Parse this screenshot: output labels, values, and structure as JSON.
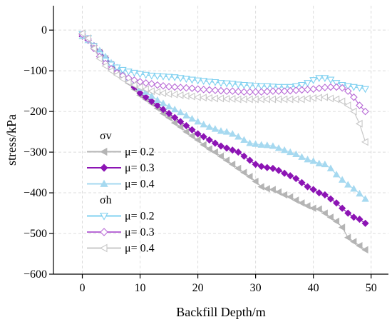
{
  "chart_data": {
    "type": "line",
    "xlabel": "Backfill Depth/m",
    "ylabel": "stress/kPa",
    "xlim": [
      -5,
      53
    ],
    "ylim": [
      -600,
      60
    ],
    "xticks": [
      0,
      10,
      20,
      30,
      40,
      50
    ],
    "yticks": [
      0,
      -100,
      -200,
      -300,
      -400,
      -500,
      -600
    ],
    "xtick_labels": [
      "0",
      "10",
      "20",
      "30",
      "40",
      "50"
    ],
    "ytick_labels": [
      "0",
      "−100",
      "−200",
      "−300",
      "−400",
      "−500",
      "−600"
    ],
    "grid": true,
    "legend_position": "bottom-left",
    "legend_groups": [
      {
        "title": "σv",
        "series": [
          "sv-0.2",
          "sv-0.3",
          "sv-0.4"
        ]
      },
      {
        "title": "σh",
        "series": [
          "sh-0.2",
          "sh-0.3",
          "sh-0.4"
        ]
      }
    ],
    "series": [
      {
        "id": "sv-0.2",
        "name": "μ= 0.2",
        "color": "#b4b4b4",
        "marker": "triangle-left",
        "filled": true,
        "points": [
          [
            0,
            -15
          ],
          [
            1,
            -25
          ],
          [
            2,
            -40
          ],
          [
            3,
            -55
          ],
          [
            4,
            -70
          ],
          [
            5,
            -85
          ],
          [
            6,
            -100
          ],
          [
            7,
            -115
          ],
          [
            8,
            -130
          ],
          [
            9,
            -145
          ],
          [
            10,
            -160
          ],
          [
            11,
            -170
          ],
          [
            12,
            -180
          ],
          [
            13,
            -192
          ],
          [
            14,
            -205
          ],
          [
            15,
            -215
          ],
          [
            16,
            -228
          ],
          [
            17,
            -238
          ],
          [
            18,
            -250
          ],
          [
            19,
            -260
          ],
          [
            20,
            -270
          ],
          [
            21,
            -282
          ],
          [
            22,
            -292
          ],
          [
            23,
            -300
          ],
          [
            24,
            -310
          ],
          [
            25,
            -320
          ],
          [
            26,
            -330
          ],
          [
            27,
            -340
          ],
          [
            28,
            -350
          ],
          [
            29,
            -360
          ],
          [
            30,
            -372
          ],
          [
            31,
            -385
          ],
          [
            32,
            -390
          ],
          [
            33,
            -392
          ],
          [
            34,
            -398
          ],
          [
            35,
            -405
          ],
          [
            36,
            -410
          ],
          [
            37,
            -418
          ],
          [
            38,
            -425
          ],
          [
            39,
            -432
          ],
          [
            40,
            -438
          ],
          [
            41,
            -440
          ],
          [
            42,
            -450
          ],
          [
            43,
            -460
          ],
          [
            44,
            -470
          ],
          [
            45,
            -485
          ],
          [
            46,
            -510
          ],
          [
            47,
            -520
          ],
          [
            48,
            -530
          ],
          [
            49,
            -540
          ]
        ]
      },
      {
        "id": "sv-0.3",
        "name": "μ= 0.3",
        "color": "#8c14b4",
        "marker": "diamond",
        "filled": true,
        "points": [
          [
            0,
            -15
          ],
          [
            1,
            -25
          ],
          [
            2,
            -38
          ],
          [
            3,
            -52
          ],
          [
            4,
            -68
          ],
          [
            5,
            -82
          ],
          [
            6,
            -98
          ],
          [
            7,
            -112
          ],
          [
            8,
            -125
          ],
          [
            9,
            -140
          ],
          [
            10,
            -155
          ],
          [
            11,
            -165
          ],
          [
            12,
            -175
          ],
          [
            13,
            -185
          ],
          [
            14,
            -195
          ],
          [
            15,
            -205
          ],
          [
            16,
            -215
          ],
          [
            17,
            -225
          ],
          [
            18,
            -235
          ],
          [
            19,
            -245
          ],
          [
            20,
            -255
          ],
          [
            21,
            -262
          ],
          [
            22,
            -270
          ],
          [
            23,
            -278
          ],
          [
            24,
            -285
          ],
          [
            25,
            -290
          ],
          [
            26,
            -295
          ],
          [
            27,
            -300
          ],
          [
            28,
            -310
          ],
          [
            29,
            -320
          ],
          [
            30,
            -330
          ],
          [
            31,
            -335
          ],
          [
            32,
            -338
          ],
          [
            33,
            -340
          ],
          [
            34,
            -345
          ],
          [
            35,
            -352
          ],
          [
            36,
            -358
          ],
          [
            37,
            -365
          ],
          [
            38,
            -375
          ],
          [
            39,
            -385
          ],
          [
            40,
            -392
          ],
          [
            41,
            -400
          ],
          [
            42,
            -405
          ],
          [
            43,
            -415
          ],
          [
            44,
            -425
          ],
          [
            45,
            -438
          ],
          [
            46,
            -450
          ],
          [
            47,
            -460
          ],
          [
            48,
            -465
          ],
          [
            49,
            -475
          ]
        ]
      },
      {
        "id": "sv-0.4",
        "name": "μ= 0.4",
        "color": "#a6d9f0",
        "marker": "triangle-up",
        "filled": true,
        "points": [
          [
            0,
            -15
          ],
          [
            1,
            -25
          ],
          [
            2,
            -38
          ],
          [
            3,
            -50
          ],
          [
            4,
            -65
          ],
          [
            5,
            -80
          ],
          [
            6,
            -92
          ],
          [
            7,
            -105
          ],
          [
            8,
            -118
          ],
          [
            9,
            -130
          ],
          [
            10,
            -142
          ],
          [
            11,
            -152
          ],
          [
            12,
            -162
          ],
          [
            13,
            -172
          ],
          [
            14,
            -180
          ],
          [
            15,
            -188
          ],
          [
            16,
            -195
          ],
          [
            17,
            -202
          ],
          [
            18,
            -210
          ],
          [
            19,
            -218
          ],
          [
            20,
            -225
          ],
          [
            21,
            -232
          ],
          [
            22,
            -238
          ],
          [
            23,
            -243
          ],
          [
            24,
            -248
          ],
          [
            25,
            -250
          ],
          [
            26,
            -255
          ],
          [
            27,
            -262
          ],
          [
            28,
            -270
          ],
          [
            29,
            -278
          ],
          [
            30,
            -280
          ],
          [
            31,
            -282
          ],
          [
            32,
            -283
          ],
          [
            33,
            -285
          ],
          [
            34,
            -290
          ],
          [
            35,
            -295
          ],
          [
            36,
            -300
          ],
          [
            37,
            -305
          ],
          [
            38,
            -312
          ],
          [
            39,
            -318
          ],
          [
            40,
            -322
          ],
          [
            41,
            -328
          ],
          [
            42,
            -330
          ],
          [
            43,
            -340
          ],
          [
            44,
            -355
          ],
          [
            45,
            -368
          ],
          [
            46,
            -380
          ],
          [
            47,
            -390
          ],
          [
            48,
            -402
          ],
          [
            49,
            -415
          ]
        ]
      },
      {
        "id": "sh-0.2",
        "name": "μ= 0.2",
        "color": "#7fd0f0",
        "marker": "triangle-down",
        "filled": false,
        "points": [
          [
            0,
            -10
          ],
          [
            1,
            -20
          ],
          [
            2,
            -40
          ],
          [
            3,
            -60
          ],
          [
            4,
            -75
          ],
          [
            5,
            -85
          ],
          [
            6,
            -92
          ],
          [
            7,
            -98
          ],
          [
            8,
            -102
          ],
          [
            9,
            -105
          ],
          [
            10,
            -108
          ],
          [
            11,
            -110
          ],
          [
            12,
            -112
          ],
          [
            13,
            -113
          ],
          [
            14,
            -114
          ],
          [
            15,
            -115
          ],
          [
            16,
            -116
          ],
          [
            17,
            -118
          ],
          [
            18,
            -120
          ],
          [
            19,
            -122
          ],
          [
            20,
            -124
          ],
          [
            21,
            -125
          ],
          [
            22,
            -127
          ],
          [
            23,
            -128
          ],
          [
            24,
            -130
          ],
          [
            25,
            -131
          ],
          [
            26,
            -132
          ],
          [
            27,
            -134
          ],
          [
            28,
            -135
          ],
          [
            29,
            -136
          ],
          [
            30,
            -137
          ],
          [
            31,
            -138
          ],
          [
            32,
            -138
          ],
          [
            33,
            -139
          ],
          [
            34,
            -140
          ],
          [
            35,
            -140
          ],
          [
            36,
            -140
          ],
          [
            37,
            -138
          ],
          [
            38,
            -135
          ],
          [
            39,
            -130
          ],
          [
            40,
            -123
          ],
          [
            41,
            -118
          ],
          [
            42,
            -118
          ],
          [
            43,
            -122
          ],
          [
            44,
            -130
          ],
          [
            45,
            -135
          ],
          [
            46,
            -138
          ],
          [
            47,
            -140
          ],
          [
            48,
            -142
          ],
          [
            49,
            -145
          ]
        ]
      },
      {
        "id": "sh-0.3",
        "name": "μ= 0.3",
        "color": "#b86ad6",
        "marker": "diamond",
        "filled": false,
        "points": [
          [
            0,
            -10
          ],
          [
            1,
            -22
          ],
          [
            2,
            -45
          ],
          [
            3,
            -65
          ],
          [
            4,
            -82
          ],
          [
            5,
            -95
          ],
          [
            6,
            -105
          ],
          [
            7,
            -112
          ],
          [
            8,
            -118
          ],
          [
            9,
            -123
          ],
          [
            10,
            -127
          ],
          [
            11,
            -130
          ],
          [
            12,
            -132
          ],
          [
            13,
            -135
          ],
          [
            14,
            -137
          ],
          [
            15,
            -139
          ],
          [
            16,
            -140
          ],
          [
            17,
            -141
          ],
          [
            18,
            -142
          ],
          [
            19,
            -143
          ],
          [
            20,
            -145
          ],
          [
            21,
            -146
          ],
          [
            22,
            -147
          ],
          [
            23,
            -148
          ],
          [
            24,
            -149
          ],
          [
            25,
            -150
          ],
          [
            26,
            -150
          ],
          [
            27,
            -151
          ],
          [
            28,
            -152
          ],
          [
            29,
            -152
          ],
          [
            30,
            -152
          ],
          [
            31,
            -152
          ],
          [
            32,
            -151
          ],
          [
            33,
            -150
          ],
          [
            34,
            -150
          ],
          [
            35,
            -150
          ],
          [
            36,
            -149
          ],
          [
            37,
            -148
          ],
          [
            38,
            -147
          ],
          [
            39,
            -146
          ],
          [
            40,
            -145
          ],
          [
            41,
            -143
          ],
          [
            42,
            -141
          ],
          [
            43,
            -140
          ],
          [
            44,
            -140
          ],
          [
            45,
            -142
          ],
          [
            46,
            -150
          ],
          [
            47,
            -165
          ],
          [
            48,
            -185
          ],
          [
            49,
            -200
          ]
        ]
      },
      {
        "id": "sh-0.4",
        "name": "μ= 0.4",
        "color": "#c8c8c8",
        "marker": "triangle-left",
        "filled": false,
        "points": [
          [
            0,
            -8
          ],
          [
            1,
            -20
          ],
          [
            2,
            -45
          ],
          [
            3,
            -70
          ],
          [
            4,
            -88
          ],
          [
            5,
            -100
          ],
          [
            6,
            -110
          ],
          [
            7,
            -120
          ],
          [
            8,
            -128
          ],
          [
            9,
            -135
          ],
          [
            10,
            -140
          ],
          [
            11,
            -145
          ],
          [
            12,
            -150
          ],
          [
            13,
            -152
          ],
          [
            14,
            -155
          ],
          [
            15,
            -157
          ],
          [
            16,
            -158
          ],
          [
            17,
            -160
          ],
          [
            18,
            -162
          ],
          [
            19,
            -163
          ],
          [
            20,
            -165
          ],
          [
            21,
            -166
          ],
          [
            22,
            -167
          ],
          [
            23,
            -168
          ],
          [
            24,
            -168
          ],
          [
            25,
            -169
          ],
          [
            26,
            -169
          ],
          [
            27,
            -170
          ],
          [
            28,
            -170
          ],
          [
            29,
            -170
          ],
          [
            30,
            -170
          ],
          [
            31,
            -170
          ],
          [
            32,
            -170
          ],
          [
            33,
            -170
          ],
          [
            34,
            -170
          ],
          [
            35,
            -170
          ],
          [
            36,
            -170
          ],
          [
            37,
            -170
          ],
          [
            38,
            -170
          ],
          [
            39,
            -168
          ],
          [
            40,
            -167
          ],
          [
            41,
            -166
          ],
          [
            42,
            -165
          ],
          [
            43,
            -168
          ],
          [
            44,
            -170
          ],
          [
            45,
            -175
          ],
          [
            46,
            -185
          ],
          [
            47,
            -200
          ],
          [
            48,
            -230
          ],
          [
            49,
            -275
          ]
        ]
      }
    ]
  }
}
